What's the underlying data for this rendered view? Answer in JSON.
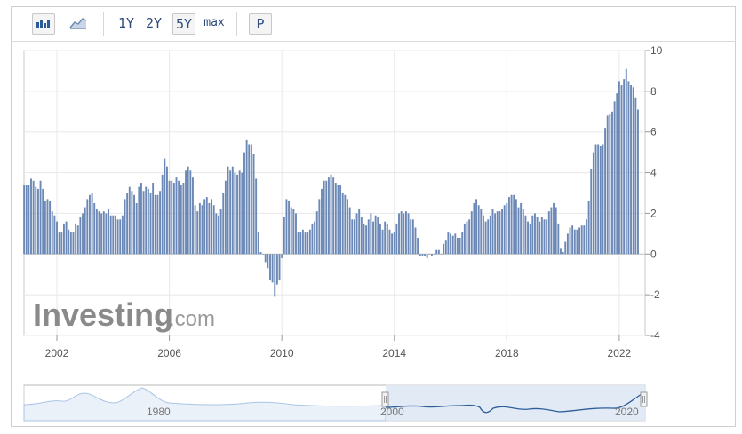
{
  "toolbar": {
    "bar_chart_icon": "bar-chart-icon",
    "area_chart_icon": "area-chart-icon",
    "range_1y": "1Y",
    "range_2y": "2Y",
    "range_5y": "5Y",
    "range_max": "max",
    "selected_range": "5Y",
    "p_button": "P"
  },
  "watermark": {
    "brand": "Investing",
    "suffix": ".com"
  },
  "colors": {
    "bar": "#6b88b6",
    "bar_edge": "#4f6d9e",
    "grid": "#e8e8e8",
    "navigator_line": "#2f5f9a",
    "navigator_fill": "#dbe6f3",
    "navigator_bg_line": "#a9c5e6"
  },
  "navigator": {
    "tick_labels": [
      "1980",
      "2000",
      "2020"
    ]
  },
  "chart_data": {
    "type": "bar",
    "title": "",
    "xlabel": "",
    "ylabel": "",
    "ylim": [
      -4,
      10
    ],
    "y_ticks": [
      10,
      8,
      6,
      4,
      2,
      0,
      -2,
      -4
    ],
    "x_tick_labels": [
      "2002",
      "2006",
      "2010",
      "2014",
      "2018",
      "2022"
    ],
    "x_tick_values": [
      2002,
      2006,
      2010,
      2014,
      2018,
      2022
    ],
    "x_range": [
      2000.83,
      2022.92
    ],
    "y_axis_position": "right",
    "grid": true,
    "series": [
      {
        "start": "2000-11",
        "frequency": "monthly",
        "values": [
          3.4,
          3.4,
          3.4,
          3.7,
          3.6,
          3.3,
          3.2,
          3.6,
          3.2,
          2.6,
          2.7,
          2.6,
          2.1,
          1.9,
          1.6,
          1.1,
          1.1,
          1.5,
          1.6,
          1.2,
          1.1,
          1.1,
          1.5,
          1.4,
          1.8,
          2.0,
          2.3,
          2.7,
          2.9,
          3.0,
          2.5,
          2.2,
          2.1,
          2.0,
          2.1,
          2.0,
          2.2,
          1.9,
          1.9,
          1.9,
          1.7,
          1.7,
          1.9,
          2.7,
          3.0,
          3.3,
          3.1,
          2.9,
          2.5,
          3.3,
          3.5,
          3.1,
          3.3,
          3.2,
          3.0,
          3.5,
          2.9,
          2.9,
          3.1,
          3.9,
          4.7,
          4.3,
          3.6,
          3.6,
          3.5,
          3.8,
          3.6,
          3.4,
          3.5,
          4.1,
          4.3,
          4.1,
          3.8,
          2.4,
          2.1,
          2.5,
          2.4,
          2.7,
          2.8,
          2.5,
          2.7,
          2.4,
          2.0,
          1.9,
          2.2,
          3.0,
          3.6,
          4.3,
          4.1,
          4.3,
          4.0,
          3.9,
          4.1,
          4.0,
          5.0,
          5.6,
          5.4,
          5.4,
          4.9,
          3.7,
          1.1,
          0.1,
          0.0,
          -0.4,
          -0.7,
          -1.3,
          -1.4,
          -2.1,
          -1.5,
          -1.3,
          -0.2,
          1.8,
          2.7,
          2.6,
          2.3,
          2.2,
          2.0,
          1.1,
          1.1,
          1.2,
          1.1,
          1.1,
          1.2,
          1.5,
          1.6,
          2.1,
          2.7,
          3.2,
          3.6,
          3.6,
          3.8,
          3.9,
          3.8,
          3.5,
          3.4,
          3.4,
          3.0,
          2.9,
          2.7,
          2.3,
          1.7,
          1.7,
          2.0,
          2.2,
          1.8,
          1.5,
          1.4,
          1.7,
          2.0,
          1.6,
          1.9,
          1.8,
          1.5,
          1.2,
          1.6,
          1.5,
          1.2,
          1.0,
          1.1,
          1.5,
          2.0,
          2.1,
          2.0,
          2.1,
          2.0,
          1.7,
          1.7,
          1.3,
          0.8,
          -0.1,
          -0.1,
          -0.1,
          -0.2,
          0.0,
          -0.1,
          0.0,
          0.2,
          0.2,
          0.0,
          0.5,
          0.7,
          1.1,
          1.0,
          0.9,
          1.0,
          0.8,
          0.8,
          1.1,
          1.5,
          1.6,
          1.7,
          2.1,
          2.5,
          2.7,
          2.4,
          2.2,
          1.9,
          1.6,
          1.7,
          1.9,
          2.2,
          2.0,
          2.1,
          2.1,
          2.2,
          2.4,
          2.5,
          2.8,
          2.9,
          2.9,
          2.7,
          2.3,
          2.5,
          2.2,
          1.9,
          1.6,
          1.5,
          1.9,
          2.0,
          1.8,
          1.6,
          1.8,
          1.7,
          1.7,
          2.1,
          2.3,
          2.5,
          2.3,
          1.5,
          0.3,
          0.1,
          0.6,
          1.0,
          1.3,
          1.4,
          1.2,
          1.2,
          1.3,
          1.4,
          1.4,
          1.7,
          2.6,
          4.2,
          5.0,
          5.4,
          5.4,
          5.3,
          5.4,
          6.2,
          6.8,
          6.9,
          7.0,
          7.5,
          7.9,
          8.5,
          8.3,
          8.6,
          9.1,
          8.5,
          8.3,
          8.2,
          7.7,
          7.1
        ]
      }
    ]
  }
}
